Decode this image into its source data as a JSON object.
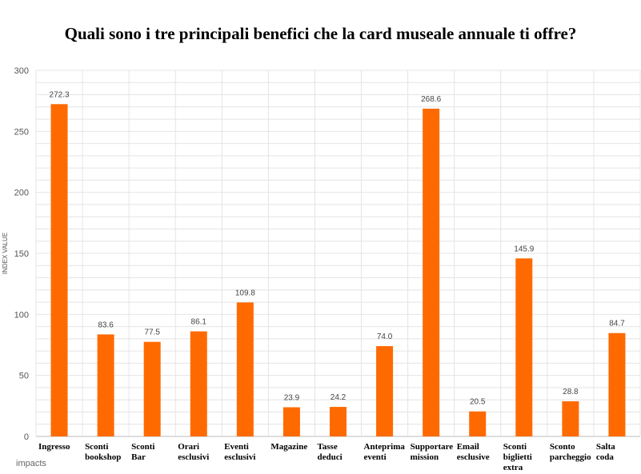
{
  "chart_data": {
    "type": "bar",
    "title": "Quali sono i tre principali benefici che la card museale annuale ti offre?",
    "ylabel": "INDEX VALUE",
    "xlabel": "",
    "ylim": [
      0,
      300
    ],
    "yticks": [
      0,
      50,
      100,
      150,
      200,
      250,
      300
    ],
    "grid": true,
    "legend": "none",
    "bar_color": "#ff6a00",
    "categories": [
      [
        "Ingresso"
      ],
      [
        "Sconti",
        "bookshop"
      ],
      [
        "Sconti",
        "Bar"
      ],
      [
        "Orari",
        "esclusivi"
      ],
      [
        "Eventi",
        "esclusivi"
      ],
      [
        "Magazine"
      ],
      [
        "Tasse",
        "deduci"
      ],
      [
        "Anteprima",
        "eventi"
      ],
      [
        "Supportare",
        "mission"
      ],
      [
        "Email",
        "esclusive"
      ],
      [
        "Sconti",
        "biglietti",
        "extra"
      ],
      [
        "Sconto",
        "parcheggio"
      ],
      [
        "Salta",
        "coda"
      ]
    ],
    "values": [
      272.3,
      83.6,
      77.5,
      86.1,
      109.8,
      23.9,
      24.2,
      74.0,
      268.6,
      20.5,
      145.9,
      28.8,
      84.7
    ],
    "value_labels": [
      "272.3",
      "83.6",
      "77.5",
      "86.1",
      "109.8",
      "23.9",
      "24.2",
      "74.0",
      "268.6",
      "20.5",
      "145.9",
      "28.8",
      "84.7"
    ]
  },
  "brand": "impacts"
}
